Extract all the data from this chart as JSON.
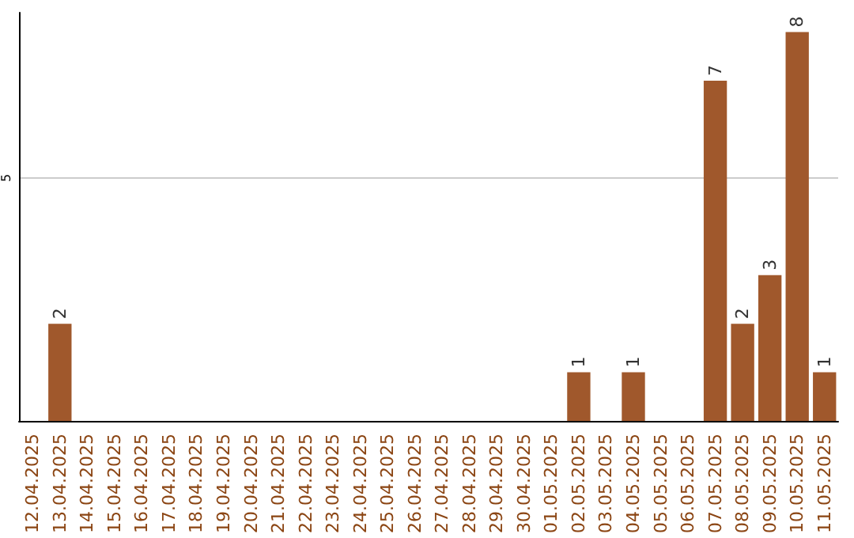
{
  "chart_data": {
    "type": "bar",
    "categories": [
      "12.04.2025",
      "13.04.2025",
      "14.04.2025",
      "15.04.2025",
      "16.04.2025",
      "17.04.2025",
      "18.04.2025",
      "19.04.2025",
      "20.04.2025",
      "21.04.2025",
      "22.04.2025",
      "23.04.2025",
      "24.04.2025",
      "25.04.2025",
      "26.04.2025",
      "27.04.2025",
      "28.04.2025",
      "29.04.2025",
      "30.04.2025",
      "01.05.2025",
      "02.05.2025",
      "03.05.2025",
      "04.05.2025",
      "05.05.2025",
      "06.05.2025",
      "07.05.2025",
      "08.05.2025",
      "09.05.2025",
      "10.05.2025",
      "11.05.2025"
    ],
    "values": [
      0,
      2,
      0,
      0,
      0,
      0,
      0,
      0,
      0,
      0,
      0,
      0,
      0,
      0,
      0,
      0,
      0,
      0,
      0,
      0,
      1,
      0,
      1,
      0,
      0,
      7,
      2,
      3,
      8,
      1
    ],
    "value_labels": [
      null,
      "2",
      null,
      null,
      null,
      null,
      null,
      null,
      null,
      null,
      null,
      null,
      null,
      null,
      null,
      null,
      null,
      null,
      null,
      null,
      "1",
      null,
      "1",
      null,
      null,
      "7",
      "2",
      "3",
      "8",
      "1"
    ],
    "color": "#a0582c",
    "ylim": [
      0,
      8.4
    ],
    "yticks": [
      5
    ],
    "grid": "y"
  }
}
